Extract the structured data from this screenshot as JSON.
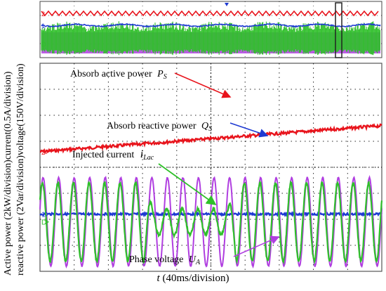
{
  "y_axis_label_line1": "Active power (2kW/division)current(0.5A/division)",
  "y_axis_label_line2": "reactive power (2Var/division)voltage(150V/division)",
  "x_axis_label_var": "t",
  "x_axis_label_unit": " (40ms/division)",
  "annotations": {
    "active_power": "Absorb  active power",
    "active_power_sym": "P",
    "active_power_sub": "S",
    "reactive_power": "Absorb  reactive power",
    "reactive_power_sym": "Q",
    "reactive_power_sub": "S",
    "current": "Injected current",
    "current_sym": "i",
    "current_sub": "Lac",
    "voltage": "Phase voltage",
    "voltage_sym": "U",
    "voltage_sub": "A"
  },
  "channel_markers": {
    "ch1": "1",
    "ch2": "2"
  },
  "colors": {
    "active_power": "#e8141c",
    "reactive_power": "#1e3ad2",
    "current": "#2fc02a",
    "voltage": "#b03ee0",
    "grid": "#000000",
    "border": "#444444"
  },
  "chart_data": {
    "type": "line",
    "grid": true,
    "x_divisions": 10,
    "y_divisions": 8,
    "x_division_ms": 40,
    "series": [
      {
        "name": "Absorb active power Ps",
        "kind": "power",
        "start_div": 4.6,
        "end_div": 5.6
      },
      {
        "name": "Absorb reactive power Qs",
        "kind": "power",
        "start_div": 2.2,
        "end_div": 2.2
      },
      {
        "name": "Injected current iLac",
        "kind": "current",
        "amplitude_normal_div": 1.5,
        "amplitude_reduced_div": 0.5,
        "reduced_interval_div": [
          3.3,
          5.5
        ]
      },
      {
        "name": "Phase voltage UA",
        "kind": "voltage",
        "amplitude_div": 1.7
      }
    ],
    "voltage_cycles_visible": 22
  }
}
